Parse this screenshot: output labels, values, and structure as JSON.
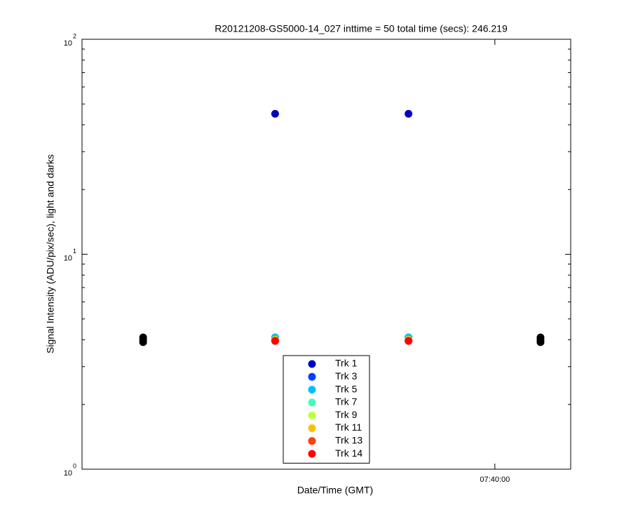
{
  "chart_data": {
    "type": "scatter",
    "title": "R20121208-GS5000-14_027 inttime = 50 total time (secs): 246.219",
    "x_label": "Date/Time (GMT)",
    "y_label": "Signal Intensity (ADU/pix/sec), light and darks",
    "y_scale": "log",
    "grid": false,
    "legend_position": "bottom",
    "xlim": [
      27306,
      27654
    ],
    "xticks": [
      {
        "value": 27600,
        "label": "07:40:00"
      }
    ],
    "ylim": [
      1,
      100
    ],
    "yticks": [
      {
        "value": 1,
        "label": "10",
        "exponent": "0"
      },
      {
        "value": 10,
        "label": "10",
        "exponent": "1"
      },
      {
        "value": 100,
        "label": "10",
        "exponent": "2"
      }
    ],
    "series": [
      {
        "name": "Trk 1",
        "color": "#0000bf",
        "x": [
          27443.5,
          27538.5
        ],
        "values": [
          45,
          45
        ]
      },
      {
        "name": "Trk 3",
        "color": "#0040ff",
        "x": [
          27443.5,
          27538.5
        ],
        "values": [
          4.1,
          4.1
        ]
      },
      {
        "name": "Trk 5",
        "color": "#00bfff",
        "x": [
          27443.5,
          27538.5
        ],
        "values": [
          4.1,
          4.1
        ]
      },
      {
        "name": "Trk 7",
        "color": "#40ffbf",
        "x": [
          27443.5,
          27538.5
        ],
        "values": [
          4.0,
          4.0
        ]
      },
      {
        "name": "Trk 9",
        "color": "#bfff40",
        "x": [
          27443.5,
          27538.5
        ],
        "values": [
          4.0,
          4.0
        ]
      },
      {
        "name": "Trk 11",
        "color": "#ffbf00",
        "x": [
          27443.5,
          27538.5
        ],
        "values": [
          4.0,
          4.0
        ]
      },
      {
        "name": "Trk 13",
        "color": "#ff4000",
        "x": [
          27443.5,
          27538.5
        ],
        "values": [
          3.95,
          3.95
        ]
      },
      {
        "name": "Trk 14",
        "color": "#ff0000",
        "x": [
          27443.5,
          27538.5
        ],
        "values": [
          3.95,
          3.95
        ]
      },
      {
        "color": "#000000",
        "x": [
          27349.5,
          27349.5,
          27349.5,
          27632.5,
          27632.5,
          27632.5
        ],
        "values": [
          3.9,
          4.0,
          4.1,
          3.9,
          4.0,
          4.1
        ]
      }
    ]
  }
}
